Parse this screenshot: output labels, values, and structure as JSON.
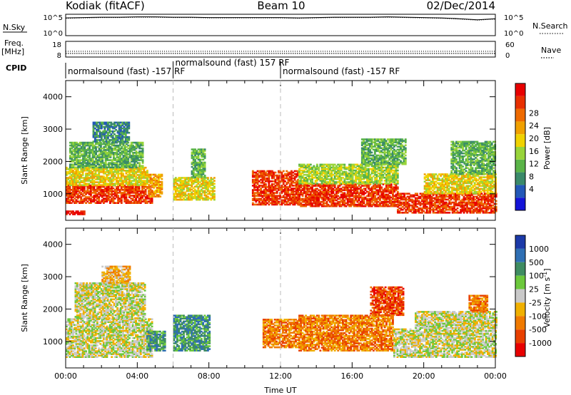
{
  "header": {
    "station": "Kodiak (fitACF)",
    "beam": "Beam 10",
    "date": "02/Dec/2014"
  },
  "chart_data": [
    {
      "type": "line",
      "panel": "noise",
      "ylabel_left": "N.Sky",
      "ylabel_right": "N.Search",
      "yticks_left": [
        "10^5",
        "10^0"
      ],
      "yticks_right": [
        "10^5",
        "10^0"
      ],
      "x": [
        0,
        1,
        2,
        3,
        4,
        5,
        6,
        7,
        8,
        9,
        10,
        11,
        12,
        13,
        14,
        15,
        16,
        17,
        18,
        19,
        20,
        21,
        22,
        23,
        24
      ],
      "series": [
        {
          "values": [
            4.4,
            4.5,
            4.6,
            4.6,
            4.7,
            4.7,
            4.6,
            4.6,
            4.5,
            4.5,
            4.5,
            4.5,
            4.5,
            4.4,
            4.5,
            4.6,
            4.6,
            4.6,
            4.7,
            4.6,
            4.5,
            4.4,
            4.2,
            3.9,
            4.2
          ]
        },
        {
          "values": [
            4.3,
            4.4,
            4.5,
            4.5,
            4.6,
            4.6,
            4.5,
            4.5,
            4.4,
            4.4,
            4.4,
            4.4,
            4.4,
            4.3,
            4.4,
            4.5,
            4.5,
            4.5,
            4.6,
            4.5,
            4.4,
            4.3,
            4.1,
            3.8,
            4.1
          ]
        }
      ],
      "xlim": [
        0,
        24
      ]
    },
    {
      "type": "line",
      "panel": "frequency-nave",
      "ylabel_left": "Freq.",
      "ylabel_left_unit": "[MHz]",
      "ylabel_right": "Nave",
      "yticks_left": [
        "18",
        "8"
      ],
      "yticks_right": [
        "60",
        "0"
      ],
      "ylim_left": [
        8,
        18
      ],
      "ylim_right": [
        0,
        60
      ],
      "freq": 10.3,
      "nave": 22,
      "xlim": [
        0,
        24
      ]
    },
    {
      "type": "table",
      "panel": "cpid",
      "label": "CPID",
      "segments": [
        {
          "start": 0,
          "end": 6,
          "text": "normalsound (fast) -157 RF",
          "row": "low"
        },
        {
          "start": 6,
          "end": 12,
          "text": "normalsound (fast) 157 RF",
          "row": "high"
        },
        {
          "start": 12,
          "end": 24,
          "text": "normalsound (fast) -157 RF",
          "row": "low"
        }
      ]
    },
    {
      "type": "heatmap",
      "panel": "power",
      "ylabel": "Slant Range [km]",
      "yticks": [
        1000,
        2000,
        3000,
        4000
      ],
      "ylim": [
        180,
        4500
      ],
      "xlim": [
        0,
        24
      ],
      "colorbar": {
        "label": "Power [dB]",
        "ticks": [
          "4",
          "8",
          "12",
          "16",
          "20",
          "24",
          "28"
        ],
        "colors": [
          "#1414d8",
          "#2358b8",
          "#3a8a6a",
          "#5ab448",
          "#98d43a",
          "#f0d200",
          "#f0a000",
          "#ee6a00",
          "#e83000",
          "#e80000"
        ]
      },
      "regions": [
        {
          "t0": 0.0,
          "t1": 1.0,
          "r0": 350,
          "r1": 480,
          "v": 9
        },
        {
          "t0": 0.0,
          "t1": 4.8,
          "r0": 700,
          "r1": 1250,
          "v": 8
        },
        {
          "t0": 0.0,
          "t1": 4.5,
          "r0": 1250,
          "r1": 1800,
          "v": 5
        },
        {
          "t0": 0.2,
          "t1": 4.3,
          "r0": 1800,
          "r1": 2600,
          "v": 3
        },
        {
          "t0": 1.5,
          "t1": 3.5,
          "r0": 2600,
          "r1": 3200,
          "v": 2
        },
        {
          "t0": 4.6,
          "t1": 5.4,
          "r0": 900,
          "r1": 1600,
          "v": 6
        },
        {
          "t0": 6.0,
          "t1": 8.3,
          "r0": 800,
          "r1": 1500,
          "v": 5
        },
        {
          "t0": 7.0,
          "t1": 7.8,
          "r0": 1500,
          "r1": 2400,
          "v": 3
        },
        {
          "t0": 10.4,
          "t1": 13.0,
          "r0": 650,
          "r1": 1700,
          "v": 8
        },
        {
          "t0": 13.0,
          "t1": 18.5,
          "r0": 600,
          "r1": 1300,
          "v": 8
        },
        {
          "t0": 13.0,
          "t1": 18.5,
          "r0": 1300,
          "r1": 1900,
          "v": 4
        },
        {
          "t0": 16.5,
          "t1": 19.0,
          "r0": 1900,
          "r1": 2700,
          "v": 3
        },
        {
          "t0": 18.5,
          "t1": 24.0,
          "r0": 400,
          "r1": 1000,
          "v": 8
        },
        {
          "t0": 20.0,
          "t1": 24.0,
          "r0": 1000,
          "r1": 1600,
          "v": 5
        },
        {
          "t0": 21.5,
          "t1": 24.0,
          "r0": 1600,
          "r1": 2600,
          "v": 3
        }
      ]
    },
    {
      "type": "heatmap",
      "panel": "velocity",
      "ylabel": "Slant Range [km]",
      "yticks": [
        1000,
        2000,
        3000,
        4000
      ],
      "ylim": [
        180,
        4500
      ],
      "xlim": [
        0,
        24
      ],
      "xticks": [
        "00:00",
        "04:00",
        "08:00",
        "12:00",
        "16:00",
        "20:00",
        "00:00"
      ],
      "xlabel": "Time UT",
      "colorbar": {
        "label": "Velocity [m s",
        "label_sup": "-1",
        "label_end": "]",
        "ticks": [
          "1000",
          "500",
          "100",
          "25",
          "-25",
          "-100",
          "-500",
          "-1000"
        ],
        "colors": [
          "#1c3aa8",
          "#2f6fb4",
          "#3f8c62",
          "#6cc83c",
          "#c9c9c9",
          "#f0b000",
          "#f07a00",
          "#e84000",
          "#e80000"
        ]
      },
      "regions": [
        {
          "t0": 0.0,
          "t1": 4.8,
          "r0": 500,
          "r1": 1700,
          "v": 4
        },
        {
          "t0": 0.5,
          "t1": 4.4,
          "r0": 1700,
          "r1": 2800,
          "v": 4
        },
        {
          "t0": 2.0,
          "t1": 3.6,
          "r0": 2800,
          "r1": 3300,
          "v": 5
        },
        {
          "t0": 4.5,
          "t1": 5.5,
          "r0": 700,
          "r1": 1300,
          "v": 2
        },
        {
          "t0": 6.0,
          "t1": 8.0,
          "r0": 700,
          "r1": 1800,
          "v": 2
        },
        {
          "t0": 11.0,
          "t1": 13.0,
          "r0": 800,
          "r1": 1700,
          "v": 6
        },
        {
          "t0": 13.0,
          "t1": 18.3,
          "r0": 700,
          "r1": 1800,
          "v": 6
        },
        {
          "t0": 17.0,
          "t1": 18.8,
          "r0": 1800,
          "r1": 2700,
          "v": 7
        },
        {
          "t0": 18.3,
          "t1": 24.0,
          "r0": 500,
          "r1": 1400,
          "v": 4
        },
        {
          "t0": 19.5,
          "t1": 24.0,
          "r0": 1400,
          "r1": 1900,
          "v": 4
        },
        {
          "t0": 22.5,
          "t1": 23.5,
          "r0": 1900,
          "r1": 2400,
          "v": 6
        }
      ]
    }
  ]
}
